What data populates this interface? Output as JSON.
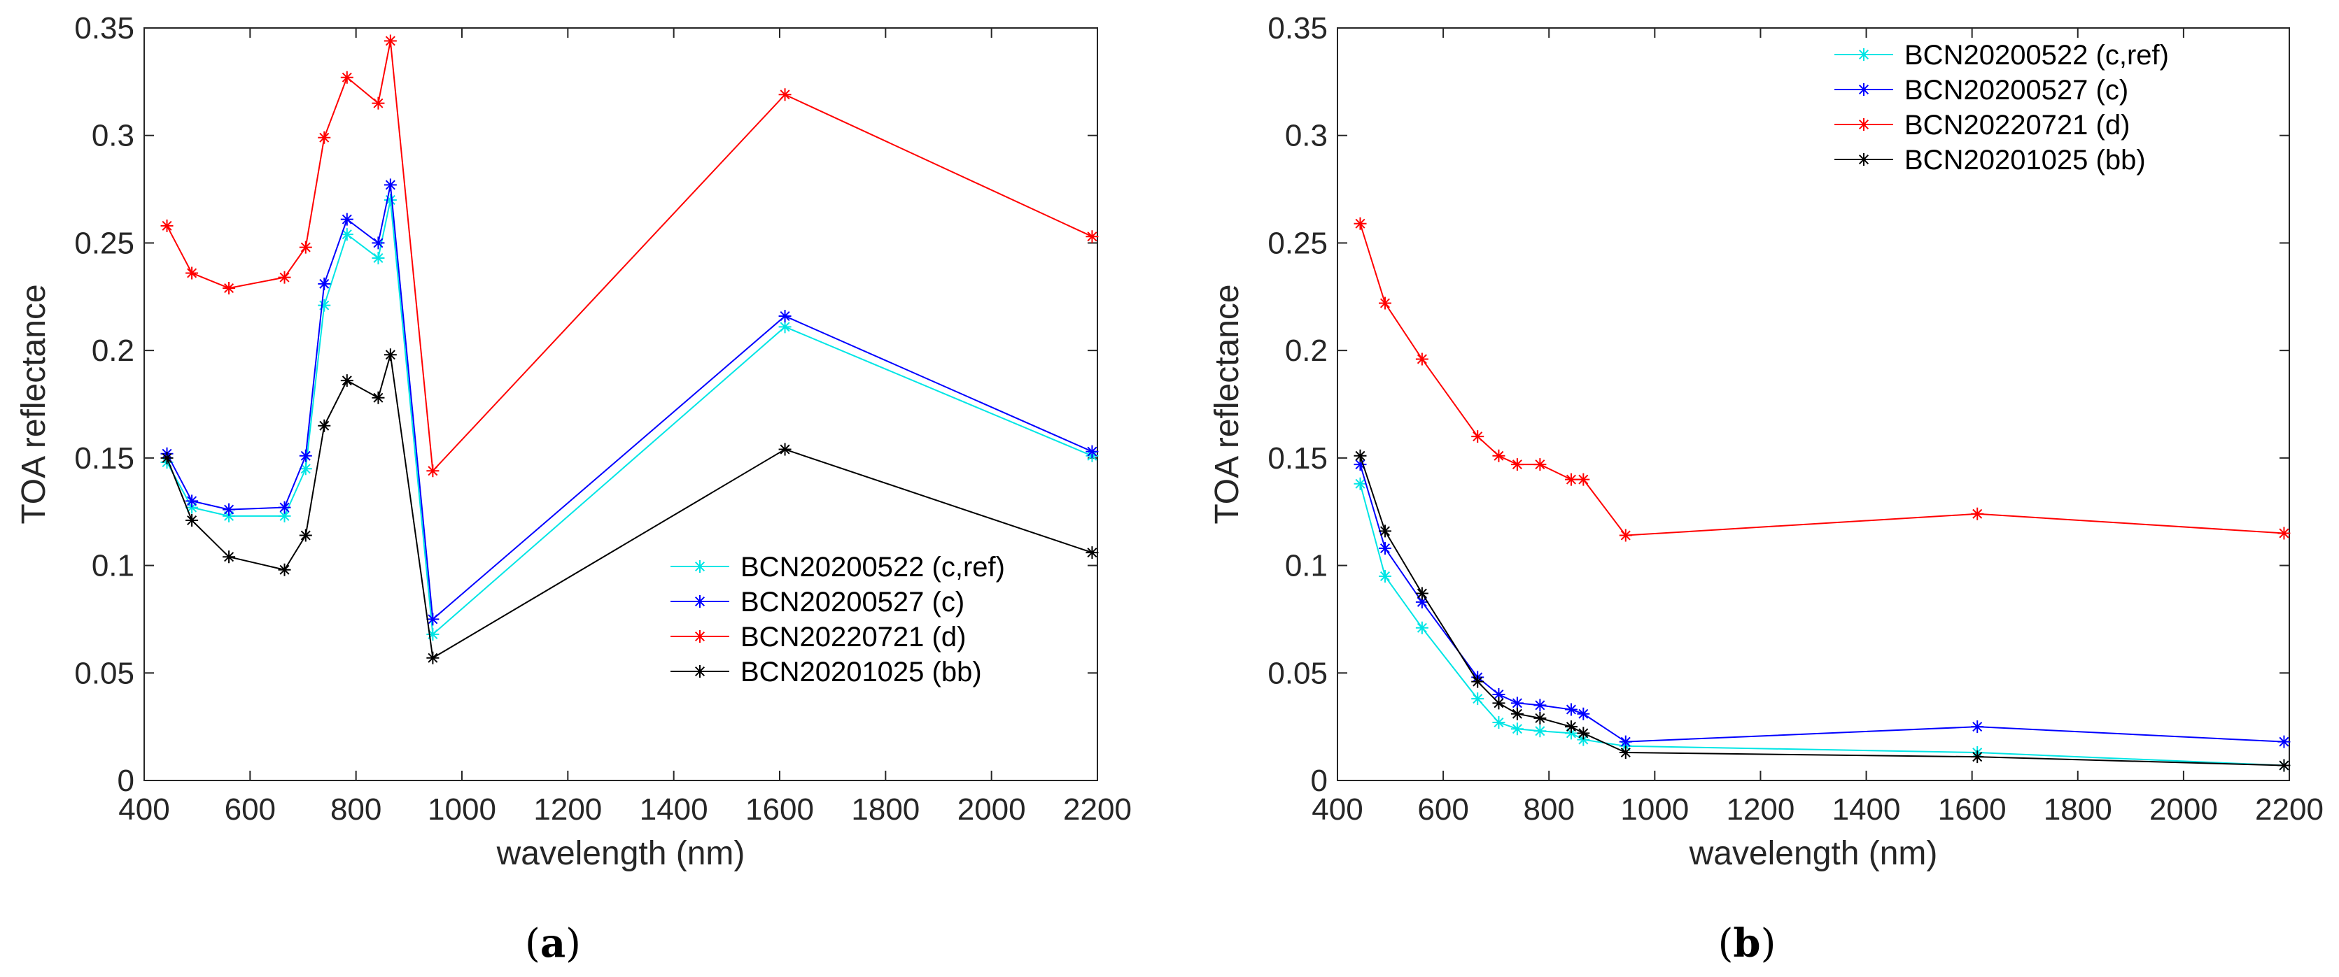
{
  "chart_data": [
    {
      "type": "line",
      "panel": "a",
      "caption_open": "(",
      "caption_letter": "a",
      "caption_close": ")",
      "xlabel": "wavelength (nm)",
      "ylabel": "TOA reflectance",
      "xlim": [
        400,
        2200
      ],
      "ylim": [
        0,
        0.35
      ],
      "xticks": [
        400,
        600,
        800,
        1000,
        1200,
        1400,
        1600,
        1800,
        2000,
        2200
      ],
      "yticks": [
        0,
        0.05,
        0.1,
        0.15,
        0.2,
        0.25,
        0.3,
        0.35
      ],
      "ytick_labels": [
        "0",
        "0.05",
        "0.1",
        "0.15",
        "0.2",
        "0.25",
        "0.3",
        "0.35"
      ],
      "legend_position": "lower-right",
      "x": [
        443,
        490,
        560,
        665,
        705,
        740,
        783,
        842,
        865,
        945,
        1610,
        2190
      ],
      "series": [
        {
          "name": "BCN20200522 (c,ref)",
          "color": "#00e5e5",
          "values": [
            0.148,
            0.127,
            0.123,
            0.123,
            0.145,
            0.221,
            0.254,
            0.243,
            0.27,
            0.068,
            0.211,
            0.151
          ]
        },
        {
          "name": "BCN20200527 (c)",
          "color": "#0000ff",
          "values": [
            0.152,
            0.13,
            0.126,
            0.127,
            0.151,
            0.231,
            0.261,
            0.25,
            0.277,
            0.075,
            0.216,
            0.153
          ]
        },
        {
          "name": "BCN20220721 (d)",
          "color": "#ff0000",
          "values": [
            0.258,
            0.236,
            0.229,
            0.234,
            0.248,
            0.299,
            0.327,
            0.315,
            0.344,
            0.144,
            0.319,
            0.253
          ]
        },
        {
          "name": "BCN20201025 (bb)",
          "color": "#000000",
          "values": [
            0.15,
            0.121,
            0.104,
            0.098,
            0.114,
            0.165,
            0.186,
            0.178,
            0.198,
            0.057,
            0.154,
            0.106
          ]
        }
      ]
    },
    {
      "type": "line",
      "panel": "b",
      "caption_open": "(",
      "caption_letter": "b",
      "caption_close": ")",
      "xlabel": "wavelength (nm)",
      "ylabel": "TOA reflectance",
      "xlim": [
        400,
        2200
      ],
      "ylim": [
        0,
        0.35
      ],
      "xticks": [
        400,
        600,
        800,
        1000,
        1200,
        1400,
        1600,
        1800,
        2000,
        2200
      ],
      "yticks": [
        0,
        0.05,
        0.1,
        0.15,
        0.2,
        0.25,
        0.3,
        0.35
      ],
      "ytick_labels": [
        "0",
        "0.05",
        "0.1",
        "0.15",
        "0.2",
        "0.25",
        "0.3",
        "0.35"
      ],
      "legend_position": "top-right",
      "x": [
        443,
        490,
        560,
        665,
        705,
        740,
        783,
        842,
        865,
        945,
        1610,
        2190
      ],
      "series": [
        {
          "name": "BCN20200522 (c,ref)",
          "color": "#00e5e5",
          "values": [
            0.138,
            0.095,
            0.071,
            0.038,
            0.027,
            0.024,
            0.023,
            0.022,
            0.019,
            0.016,
            0.013,
            0.007
          ]
        },
        {
          "name": "BCN20200527 (c)",
          "color": "#0000ff",
          "values": [
            0.147,
            0.108,
            0.083,
            0.048,
            0.04,
            0.036,
            0.035,
            0.033,
            0.031,
            0.018,
            0.025,
            0.018
          ]
        },
        {
          "name": "BCN20220721 (d)",
          "color": "#ff0000",
          "values": [
            0.259,
            0.222,
            0.196,
            0.16,
            0.151,
            0.147,
            0.147,
            0.14,
            0.14,
            0.114,
            0.124,
            0.115
          ]
        },
        {
          "name": "BCN20201025 (bb)",
          "color": "#000000",
          "values": [
            0.151,
            0.116,
            0.087,
            0.046,
            0.036,
            0.031,
            0.029,
            0.025,
            0.022,
            0.013,
            0.011,
            0.007
          ]
        }
      ]
    }
  ]
}
